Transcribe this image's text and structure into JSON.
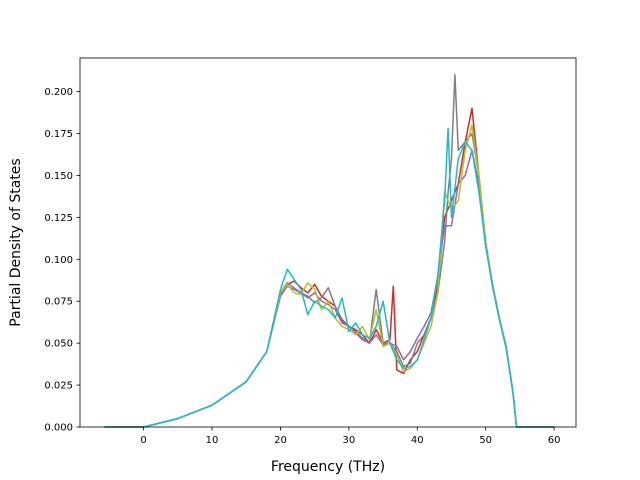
{
  "chart_data": {
    "type": "line",
    "title": "",
    "xlabel": "Frequency (THz)",
    "ylabel": "Partial Density of States",
    "xlim": [
      -9.3,
      63.2
    ],
    "ylim": [
      0.0,
      0.22
    ],
    "xticks": [
      0,
      10,
      20,
      30,
      40,
      50,
      60
    ],
    "xtick_labels": [
      "0",
      "10",
      "20",
      "30",
      "40",
      "50",
      "60"
    ],
    "yticks": [
      0.0,
      0.025,
      0.05,
      0.075,
      0.1,
      0.125,
      0.15,
      0.175,
      0.2
    ],
    "ytick_labels": [
      "0.000",
      "0.025",
      "0.050",
      "0.075",
      "0.100",
      "0.125",
      "0.150",
      "0.175",
      "0.200"
    ],
    "grid": false,
    "legend": "none",
    "series": [
      {
        "color": "#d62728",
        "x": [
          -5.7,
          0,
          5,
          10,
          15,
          18,
          20,
          21,
          22,
          23,
          24,
          25,
          26,
          27,
          28,
          29,
          30,
          31,
          32,
          33,
          34,
          35,
          36,
          36.5,
          37,
          38,
          39,
          40,
          41,
          42,
          43,
          44,
          45,
          46,
          47,
          48,
          49,
          50,
          51,
          52,
          53,
          54,
          54.5,
          60
        ],
        "y": [
          0.0,
          0.0,
          0.005,
          0.013,
          0.027,
          0.045,
          0.079,
          0.085,
          0.087,
          0.083,
          0.08,
          0.085,
          0.078,
          0.075,
          0.072,
          0.064,
          0.06,
          0.058,
          0.055,
          0.05,
          0.058,
          0.05,
          0.052,
          0.084,
          0.034,
          0.032,
          0.04,
          0.045,
          0.055,
          0.065,
          0.085,
          0.125,
          0.135,
          0.145,
          0.17,
          0.19,
          0.15,
          0.11,
          0.085,
          0.065,
          0.048,
          0.02,
          0.0,
          0.0
        ]
      },
      {
        "color": "#7f7f7f",
        "x": [
          -5.7,
          0,
          5,
          10,
          15,
          18,
          20,
          21,
          22,
          23,
          24,
          25,
          26,
          27,
          28,
          29,
          30,
          31,
          32,
          33,
          34,
          35,
          36,
          37,
          38,
          39,
          40,
          41,
          42,
          43,
          44,
          44.5,
          45,
          45.5,
          46,
          47,
          48,
          49,
          50,
          51,
          52,
          53,
          54,
          54.5,
          60
        ],
        "y": [
          0.0,
          0.0,
          0.005,
          0.013,
          0.027,
          0.045,
          0.08,
          0.086,
          0.083,
          0.08,
          0.078,
          0.074,
          0.077,
          0.083,
          0.072,
          0.063,
          0.06,
          0.057,
          0.053,
          0.05,
          0.082,
          0.05,
          0.05,
          0.045,
          0.036,
          0.038,
          0.05,
          0.055,
          0.065,
          0.08,
          0.11,
          0.14,
          0.16,
          0.21,
          0.165,
          0.17,
          0.175,
          0.15,
          0.11,
          0.085,
          0.065,
          0.048,
          0.02,
          0.0,
          0.0
        ]
      },
      {
        "color": "#9467bd",
        "x": [
          -5.7,
          0,
          5,
          10,
          15,
          18,
          20,
          21,
          22,
          23,
          24,
          25,
          26,
          27,
          28,
          29,
          30,
          31,
          32,
          33,
          34,
          35,
          36,
          37,
          38,
          39,
          40,
          41,
          42,
          43,
          44,
          45,
          46,
          47,
          48,
          49,
          50,
          51,
          52,
          53,
          54,
          54.5,
          60
        ],
        "y": [
          0.0,
          0.0,
          0.005,
          0.013,
          0.027,
          0.045,
          0.078,
          0.084,
          0.082,
          0.08,
          0.077,
          0.08,
          0.075,
          0.073,
          0.07,
          0.062,
          0.06,
          0.056,
          0.052,
          0.05,
          0.055,
          0.049,
          0.05,
          0.048,
          0.04,
          0.045,
          0.053,
          0.06,
          0.068,
          0.09,
          0.12,
          0.12,
          0.145,
          0.15,
          0.165,
          0.145,
          0.108,
          0.084,
          0.064,
          0.047,
          0.02,
          0.0,
          0.0
        ]
      },
      {
        "color": "#bcbd22",
        "x": [
          -5.7,
          0,
          5,
          10,
          15,
          18,
          20,
          21,
          22,
          23,
          24,
          25,
          26,
          27,
          28,
          29,
          30,
          31,
          32,
          33,
          34,
          35,
          36,
          37,
          38,
          39,
          40,
          41,
          42,
          43,
          44,
          45,
          46,
          47,
          48,
          49,
          50,
          51,
          52,
          53,
          54,
          54.5,
          60
        ],
        "y": [
          0.0,
          0.0,
          0.005,
          0.013,
          0.027,
          0.045,
          0.08,
          0.085,
          0.08,
          0.079,
          0.086,
          0.082,
          0.07,
          0.075,
          0.065,
          0.06,
          0.058,
          0.055,
          0.06,
          0.052,
          0.07,
          0.048,
          0.05,
          0.043,
          0.033,
          0.035,
          0.04,
          0.05,
          0.06,
          0.08,
          0.14,
          0.13,
          0.135,
          0.165,
          0.18,
          0.15,
          0.11,
          0.085,
          0.065,
          0.048,
          0.02,
          0.0,
          0.0
        ]
      },
      {
        "color": "#17becf",
        "x": [
          -5.7,
          0,
          5,
          10,
          15,
          18,
          20,
          21,
          22,
          23,
          24,
          25,
          26,
          27,
          28,
          29,
          30,
          31,
          32,
          33,
          34,
          35,
          36,
          37,
          38,
          39,
          40,
          41,
          42,
          43,
          44,
          44.5,
          45,
          46,
          47,
          48,
          49,
          50,
          51,
          52,
          53,
          54,
          54.5,
          60
        ],
        "y": [
          0.0,
          0.0,
          0.005,
          0.013,
          0.027,
          0.045,
          0.082,
          0.094,
          0.088,
          0.082,
          0.067,
          0.075,
          0.072,
          0.07,
          0.065,
          0.077,
          0.057,
          0.062,
          0.055,
          0.053,
          0.06,
          0.075,
          0.05,
          0.04,
          0.035,
          0.036,
          0.04,
          0.052,
          0.065,
          0.09,
          0.135,
          0.178,
          0.125,
          0.16,
          0.17,
          0.165,
          0.14,
          0.108,
          0.084,
          0.064,
          0.047,
          0.02,
          0.0,
          0.0
        ]
      }
    ]
  }
}
